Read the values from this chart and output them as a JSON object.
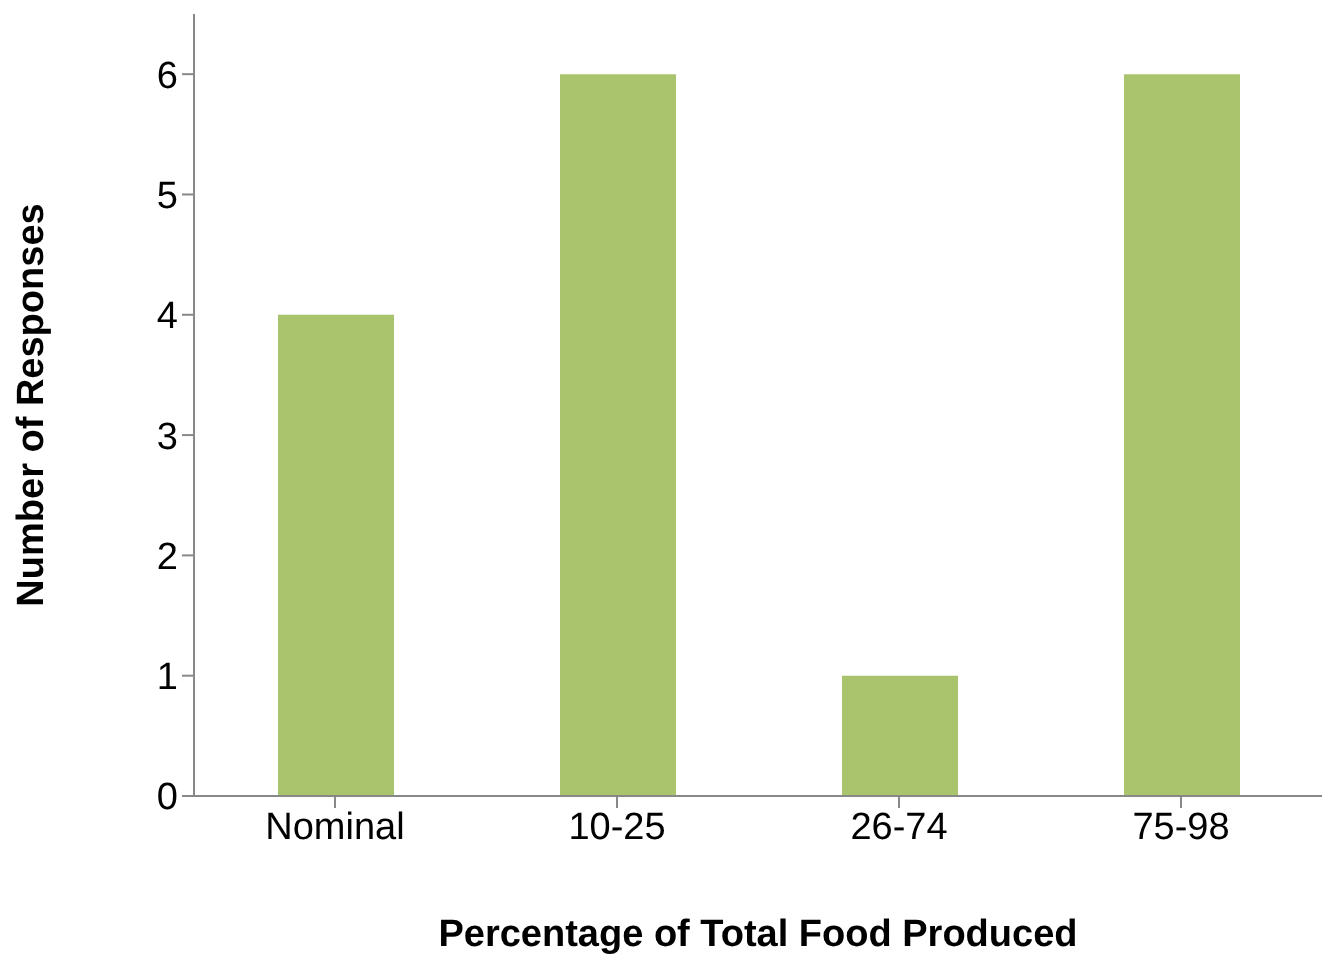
{
  "chart_data": {
    "type": "bar",
    "xlabel": "Percentage of Total Food Produced",
    "ylabel": "Number of Responses",
    "categories": [
      "Nominal",
      "10-25",
      "26-74",
      "75-98"
    ],
    "values": [
      4,
      6,
      1,
      6
    ],
    "color": "#a9c46c",
    "ylim": [
      0,
      6.5
    ],
    "yticks": [
      0,
      1,
      2,
      3,
      4,
      5,
      6
    ],
    "grid": false
  }
}
